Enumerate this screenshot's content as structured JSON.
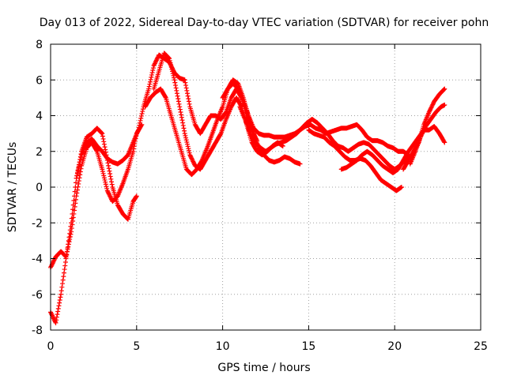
{
  "chart_data": {
    "type": "scatter",
    "title": "Day 013 of 2022, Sidereal Day-to-day VTEC variation (SDTVAR) for receiver pohn",
    "xlabel": "GPS time / hours",
    "ylabel": "SDTVAR / TECUs",
    "xlim": [
      0,
      25
    ],
    "ylim": [
      -8,
      8
    ],
    "x_ticks": [
      "0",
      "5",
      "10",
      "15",
      "20",
      "25"
    ],
    "y_ticks": [
      "-8",
      "-6",
      "-4",
      "-2",
      "0",
      "2",
      "4",
      "6",
      "8"
    ],
    "grid": true,
    "marker": "+",
    "series": [
      {
        "name": "sat-track-1",
        "color": "#ff0000",
        "x": [
          0.0,
          0.3,
          0.6,
          0.9,
          1.2,
          1.5,
          1.8,
          2.1,
          2.4,
          2.7,
          3.0,
          3.3,
          3.6,
          3.9,
          4.2,
          4.5,
          4.8,
          5.0
        ],
        "y": [
          -7.0,
          -7.6,
          -6.0,
          -4.0,
          -2.0,
          0.5,
          2.0,
          2.8,
          3.0,
          3.3,
          3.0,
          1.5,
          0.0,
          -1.0,
          -1.5,
          -1.8,
          -0.8,
          -0.5
        ]
      },
      {
        "name": "sat-track-2",
        "color": "#ff0000",
        "x": [
          0.0,
          0.3,
          0.6,
          0.9,
          1.2,
          1.5,
          1.8,
          2.1,
          2.4,
          2.7,
          3.0,
          3.3,
          3.6,
          3.9,
          4.2,
          4.5,
          4.8,
          5.0,
          5.3
        ],
        "y": [
          -4.5,
          -3.9,
          -3.6,
          -3.9,
          -2.5,
          -0.5,
          1.2,
          2.2,
          2.5,
          2.0,
          1.0,
          -0.2,
          -0.8,
          -0.5,
          0.2,
          1.0,
          2.0,
          3.0,
          3.5
        ]
      },
      {
        "name": "sat-track-3",
        "color": "#ff0000",
        "x": [
          1.5,
          1.8,
          2.1,
          2.4,
          2.7,
          3.0,
          3.3,
          3.6,
          3.9,
          4.2,
          4.5,
          4.8,
          5.1,
          5.4,
          5.7,
          6.0,
          6.3,
          6.6,
          6.9,
          7.2,
          7.5,
          7.8,
          8.1,
          8.4,
          8.7,
          9.0,
          9.3,
          9.6,
          9.9,
          10.2,
          10.5,
          10.8,
          11.1,
          11.4,
          11.7,
          12.0
        ],
        "y": [
          0.5,
          1.8,
          2.5,
          2.7,
          2.3,
          2.0,
          1.6,
          1.4,
          1.3,
          1.5,
          1.8,
          2.5,
          3.2,
          4.5,
          5.5,
          6.8,
          7.4,
          7.2,
          7.0,
          6.4,
          6.1,
          6.0,
          4.5,
          3.5,
          3.0,
          3.5,
          4.0,
          4.0,
          3.8,
          4.2,
          5.0,
          5.5,
          5.0,
          4.0,
          3.2,
          2.6
        ]
      },
      {
        "name": "sat-track-4",
        "color": "#ff0000",
        "x": [
          5.5,
          5.8,
          6.1,
          6.4,
          6.7,
          7.0,
          7.3,
          7.6,
          7.9,
          8.2,
          8.5,
          8.8,
          9.1,
          9.4,
          9.7,
          10.0,
          10.3,
          10.6,
          10.9,
          11.2,
          11.5,
          11.8,
          12.1,
          12.4,
          12.7,
          13.0,
          13.3,
          13.6,
          13.9,
          14.2,
          14.5
        ],
        "y": [
          4.5,
          5.0,
          5.3,
          5.5,
          5.0,
          4.0,
          3.0,
          2.0,
          1.0,
          0.7,
          1.0,
          1.5,
          2.2,
          3.0,
          3.8,
          4.5,
          5.5,
          6.0,
          5.8,
          5.0,
          4.0,
          3.0,
          2.2,
          1.8,
          1.5,
          1.4,
          1.5,
          1.7,
          1.6,
          1.4,
          1.3
        ]
      },
      {
        "name": "sat-track-5",
        "color": "#ff0000",
        "x": [
          6.0,
          6.3,
          6.6,
          6.9,
          7.2,
          7.5,
          7.8,
          8.1,
          8.4,
          8.7,
          9.0,
          9.3,
          9.6,
          9.9,
          10.2,
          10.5,
          10.8,
          11.1,
          11.4,
          11.7,
          12.0,
          12.3,
          12.6,
          12.9,
          13.2,
          13.5
        ],
        "y": [
          5.5,
          6.5,
          7.5,
          7.2,
          6.0,
          4.5,
          3.0,
          1.8,
          1.2,
          1.0,
          1.5,
          2.0,
          2.5,
          3.0,
          3.8,
          4.5,
          5.0,
          4.5,
          3.5,
          2.5,
          2.0,
          1.8,
          2.0,
          2.3,
          2.5,
          2.3
        ]
      },
      {
        "name": "sat-track-6",
        "color": "#ff0000",
        "x": [
          10.0,
          10.3,
          10.6,
          10.9,
          11.2,
          11.5,
          11.8,
          12.1,
          12.4,
          12.7,
          13.0,
          13.3,
          13.6,
          13.9,
          14.2,
          14.5,
          14.8,
          15.1,
          15.4,
          15.7,
          16.0,
          16.3,
          16.6,
          16.9,
          17.2,
          17.5,
          17.8,
          18.1,
          18.4,
          18.7,
          19.0,
          19.3,
          19.6,
          19.9,
          20.2,
          20.5,
          20.8
        ],
        "y": [
          5.0,
          5.5,
          5.8,
          5.5,
          4.8,
          4.0,
          3.3,
          3.0,
          2.9,
          2.9,
          2.8,
          2.8,
          2.8,
          2.9,
          3.0,
          3.2,
          3.4,
          3.5,
          3.3,
          3.2,
          3.0,
          3.1,
          3.2,
          3.3,
          3.3,
          3.4,
          3.5,
          3.2,
          2.8,
          2.6,
          2.6,
          2.5,
          2.3,
          2.2,
          2.0,
          2.0,
          1.8
        ]
      },
      {
        "name": "sat-track-7",
        "color": "#ff0000",
        "x": [
          11.0,
          11.3,
          11.6,
          11.9,
          12.2,
          12.5,
          12.8,
          13.1,
          13.4,
          13.7,
          14.0,
          14.3,
          14.6,
          14.9,
          15.2,
          15.5,
          15.8,
          16.1,
          16.4,
          16.7,
          17.0,
          17.3,
          17.6,
          17.9,
          18.2,
          18.5,
          18.8,
          19.1,
          19.4,
          19.7,
          20.0,
          20.3,
          20.6,
          20.9
        ],
        "y": [
          4.5,
          3.8,
          3.0,
          2.5,
          2.2,
          2.0,
          2.2,
          2.4,
          2.5,
          2.6,
          2.8,
          3.0,
          3.3,
          3.6,
          3.8,
          3.6,
          3.3,
          3.0,
          2.6,
          2.3,
          2.2,
          2.0,
          2.2,
          2.4,
          2.5,
          2.4,
          2.1,
          1.8,
          1.5,
          1.2,
          1.0,
          1.2,
          1.5,
          1.7
        ]
      },
      {
        "name": "sat-track-8",
        "color": "#ff0000",
        "x": [
          15.0,
          15.3,
          15.6,
          15.9,
          16.2,
          16.5,
          16.8,
          17.1,
          17.4,
          17.7,
          18.0,
          18.3,
          18.6,
          18.9,
          19.2,
          19.5,
          19.8,
          20.1,
          20.4
        ],
        "y": [
          3.2,
          3.0,
          2.9,
          2.8,
          2.5,
          2.3,
          2.0,
          1.7,
          1.5,
          1.5,
          1.6,
          1.5,
          1.2,
          0.8,
          0.4,
          0.2,
          0.0,
          -0.2,
          0.0
        ]
      },
      {
        "name": "sat-track-9",
        "color": "#ff0000",
        "x": [
          16.9,
          17.2,
          17.5,
          17.8,
          18.1,
          18.4,
          18.7,
          19.0,
          19.3,
          19.6,
          19.9,
          20.2,
          20.5,
          20.8,
          21.1,
          21.4,
          21.7,
          22.0,
          22.3,
          22.6,
          22.9
        ],
        "y": [
          1.0,
          1.1,
          1.3,
          1.5,
          1.8,
          2.0,
          1.8,
          1.5,
          1.2,
          1.0,
          0.8,
          1.0,
          1.5,
          2.0,
          2.4,
          2.8,
          3.2,
          3.2,
          3.4,
          3.0,
          2.5
        ]
      },
      {
        "name": "sat-track-10",
        "color": "#ff0000",
        "x": [
          20.5,
          20.8,
          21.1,
          21.4,
          21.7,
          22.0,
          22.3,
          22.6,
          22.9
        ],
        "y": [
          1.0,
          1.5,
          2.0,
          2.5,
          3.5,
          4.2,
          4.8,
          5.2,
          5.5
        ]
      },
      {
        "name": "sat-track-11",
        "color": "#ff0000",
        "x": [
          20.9,
          21.2,
          21.5,
          21.8,
          22.1,
          22.4,
          22.7,
          22.9
        ],
        "y": [
          1.3,
          2.0,
          2.8,
          3.4,
          3.8,
          4.2,
          4.5,
          4.6
        ]
      }
    ]
  }
}
